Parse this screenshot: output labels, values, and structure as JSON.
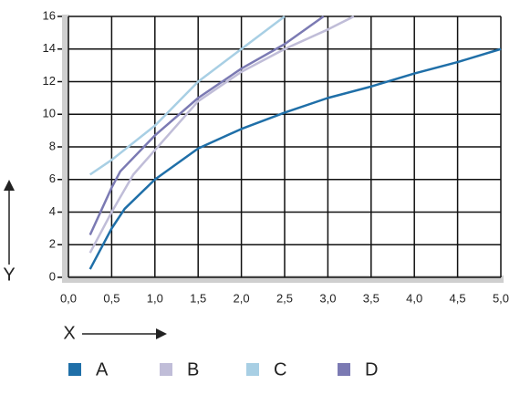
{
  "chart_data": {
    "type": "line",
    "x_label": "X",
    "y_label": "Y",
    "xlim": [
      0,
      5
    ],
    "ylim": [
      0,
      16
    ],
    "xticks": [
      {
        "value": 0,
        "label": "0,0"
      },
      {
        "value": 0.5,
        "label": "0,5"
      },
      {
        "value": 1,
        "label": "1,0"
      },
      {
        "value": 1.5,
        "label": "1,5"
      },
      {
        "value": 2,
        "label": "2,0"
      },
      {
        "value": 2.5,
        "label": "2,5"
      },
      {
        "value": 3,
        "label": "3,0"
      },
      {
        "value": 3.5,
        "label": "3,5"
      },
      {
        "value": 4,
        "label": "4,0"
      },
      {
        "value": 4.5,
        "label": "4,5"
      },
      {
        "value": 5,
        "label": "5,0"
      }
    ],
    "yticks": [
      0,
      2,
      4,
      6,
      8,
      10,
      12,
      14,
      16
    ],
    "grid": true,
    "series": [
      {
        "name": "A",
        "color": "#1f6fa8",
        "x": [
          0.25,
          0.5,
          0.65,
          1.0,
          1.5,
          2.0,
          2.5,
          3.0,
          3.5,
          4.0,
          4.5,
          5.0
        ],
        "values": [
          0.5,
          3,
          4.2,
          6,
          7.9,
          9.1,
          10.1,
          11,
          11.7,
          12.5,
          13.2,
          14
        ]
      },
      {
        "name": "B",
        "color": "#c0bdd8",
        "x": [
          0.25,
          0.5,
          0.75,
          1.0,
          1.5,
          2.0,
          2.5,
          3.0,
          3.3
        ],
        "values": [
          1.5,
          4,
          6.3,
          7.8,
          10.8,
          12.6,
          14,
          15.2,
          16
        ]
      },
      {
        "name": "C",
        "color": "#a8cfe4",
        "x": [
          0.25,
          0.5,
          1.0,
          1.5,
          2.0,
          2.5
        ],
        "values": [
          6.3,
          7.2,
          9.3,
          12,
          14,
          16
        ]
      },
      {
        "name": "D",
        "color": "#7b7ab3",
        "x": [
          0.25,
          0.5,
          0.6,
          1.0,
          1.5,
          2.0,
          2.5,
          2.95
        ],
        "values": [
          2.6,
          5.5,
          6.5,
          8.7,
          11,
          12.8,
          14.3,
          16
        ]
      }
    ]
  }
}
